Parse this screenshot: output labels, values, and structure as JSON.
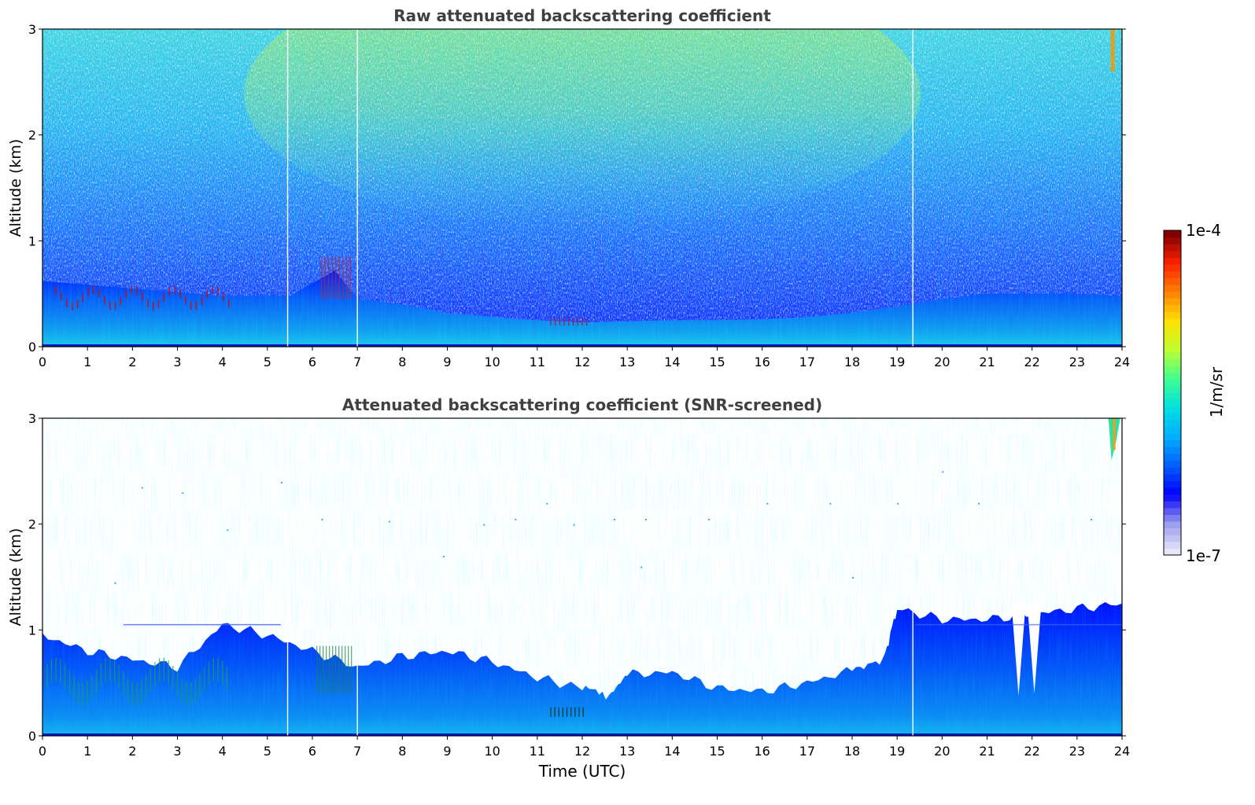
{
  "chart_data": [
    {
      "type": "heatmap",
      "title": "Raw attenuated backscattering coefficient",
      "xlabel": "",
      "ylabel": "Altitude (km)",
      "xlim": [
        0,
        24
      ],
      "ylim": [
        0,
        3
      ],
      "xticks": [
        "0",
        "1",
        "2",
        "3",
        "4",
        "5",
        "6",
        "7",
        "8",
        "9",
        "10",
        "11",
        "12",
        "13",
        "14",
        "15",
        "16",
        "17",
        "18",
        "19",
        "20",
        "21",
        "22",
        "23",
        "24"
      ],
      "yticks": [
        "0",
        "1",
        "2",
        "3"
      ],
      "screened": false,
      "boundary_layer_top_km": [
        {
          "t": 0,
          "h": 0.62
        },
        {
          "t": 2,
          "h": 0.55
        },
        {
          "t": 4,
          "h": 0.48
        },
        {
          "t": 5.5,
          "h": 0.48
        },
        {
          "t": 6.5,
          "h": 0.72
        },
        {
          "t": 7,
          "h": 0.45
        },
        {
          "t": 8,
          "h": 0.4
        },
        {
          "t": 9,
          "h": 0.32
        },
        {
          "t": 10,
          "h": 0.28
        },
        {
          "t": 11,
          "h": 0.25
        },
        {
          "t": 12,
          "h": 0.23
        },
        {
          "t": 13,
          "h": 0.24
        },
        {
          "t": 14,
          "h": 0.25
        },
        {
          "t": 15,
          "h": 0.25
        },
        {
          "t": 16,
          "h": 0.26
        },
        {
          "t": 17,
          "h": 0.28
        },
        {
          "t": 18,
          "h": 0.32
        },
        {
          "t": 19,
          "h": 0.38
        },
        {
          "t": 20,
          "h": 0.45
        },
        {
          "t": 21,
          "h": 0.5
        },
        {
          "t": 22,
          "h": 0.5
        },
        {
          "t": 23,
          "h": 0.5
        },
        {
          "t": 24,
          "h": 0.48
        }
      ],
      "data_gaps_utc": [
        5.45,
        7.0,
        19.35
      ]
    },
    {
      "type": "heatmap",
      "title": "Attenuated backscattering coefficient (SNR-screened)",
      "xlabel": "Time (UTC)",
      "ylabel": "Altitude (km)",
      "xlim": [
        0,
        24
      ],
      "ylim": [
        0,
        3
      ],
      "xticks": [
        "0",
        "1",
        "2",
        "3",
        "4",
        "5",
        "6",
        "7",
        "8",
        "9",
        "10",
        "11",
        "12",
        "13",
        "14",
        "15",
        "16",
        "17",
        "18",
        "19",
        "20",
        "21",
        "22",
        "23",
        "24"
      ],
      "yticks": [
        "0",
        "1",
        "2",
        "3"
      ],
      "screened": true,
      "layer_top_km": [
        {
          "t": 0,
          "h": 0.95
        },
        {
          "t": 1,
          "h": 0.8
        },
        {
          "t": 2,
          "h": 0.72
        },
        {
          "t": 3,
          "h": 0.65
        },
        {
          "t": 4,
          "h": 1.05
        },
        {
          "t": 5,
          "h": 0.95
        },
        {
          "t": 6,
          "h": 0.8
        },
        {
          "t": 7,
          "h": 0.65
        },
        {
          "t": 8,
          "h": 0.75
        },
        {
          "t": 9,
          "h": 0.8
        },
        {
          "t": 10,
          "h": 0.7
        },
        {
          "t": 11,
          "h": 0.55
        },
        {
          "t": 12,
          "h": 0.45
        },
        {
          "t": 12.6,
          "h": 0.38
        },
        {
          "t": 13,
          "h": 0.58
        },
        {
          "t": 14,
          "h": 0.6
        },
        {
          "t": 15,
          "h": 0.45
        },
        {
          "t": 16,
          "h": 0.42
        },
        {
          "t": 17,
          "h": 0.5
        },
        {
          "t": 18,
          "h": 0.62
        },
        {
          "t": 18.7,
          "h": 0.72
        },
        {
          "t": 19,
          "h": 1.2
        },
        {
          "t": 20,
          "h": 1.1
        },
        {
          "t": 21,
          "h": 1.1
        },
        {
          "t": 22,
          "h": 1.15
        },
        {
          "t": 23,
          "h": 1.2
        },
        {
          "t": 24,
          "h": 1.25
        }
      ],
      "clear_gaps_utc": [
        [
          21.7,
          0.38
        ],
        [
          22.05,
          0.4
        ]
      ],
      "cloud_top_right_utc": 23.75,
      "data_gaps_utc": [
        5.45,
        7.0,
        19.35
      ]
    }
  ],
  "colorbar": {
    "label": "1/m/sr",
    "max_label": "1e-4",
    "min_label": "1e-7",
    "scale": "log",
    "colors": [
      "#e8e8f8",
      "#9a9aee",
      "#0000ff",
      "#0060ff",
      "#00b0ff",
      "#00e0e0",
      "#40ff90",
      "#c0ff30",
      "#ffe000",
      "#ff8000",
      "#ff2000",
      "#800000"
    ]
  }
}
